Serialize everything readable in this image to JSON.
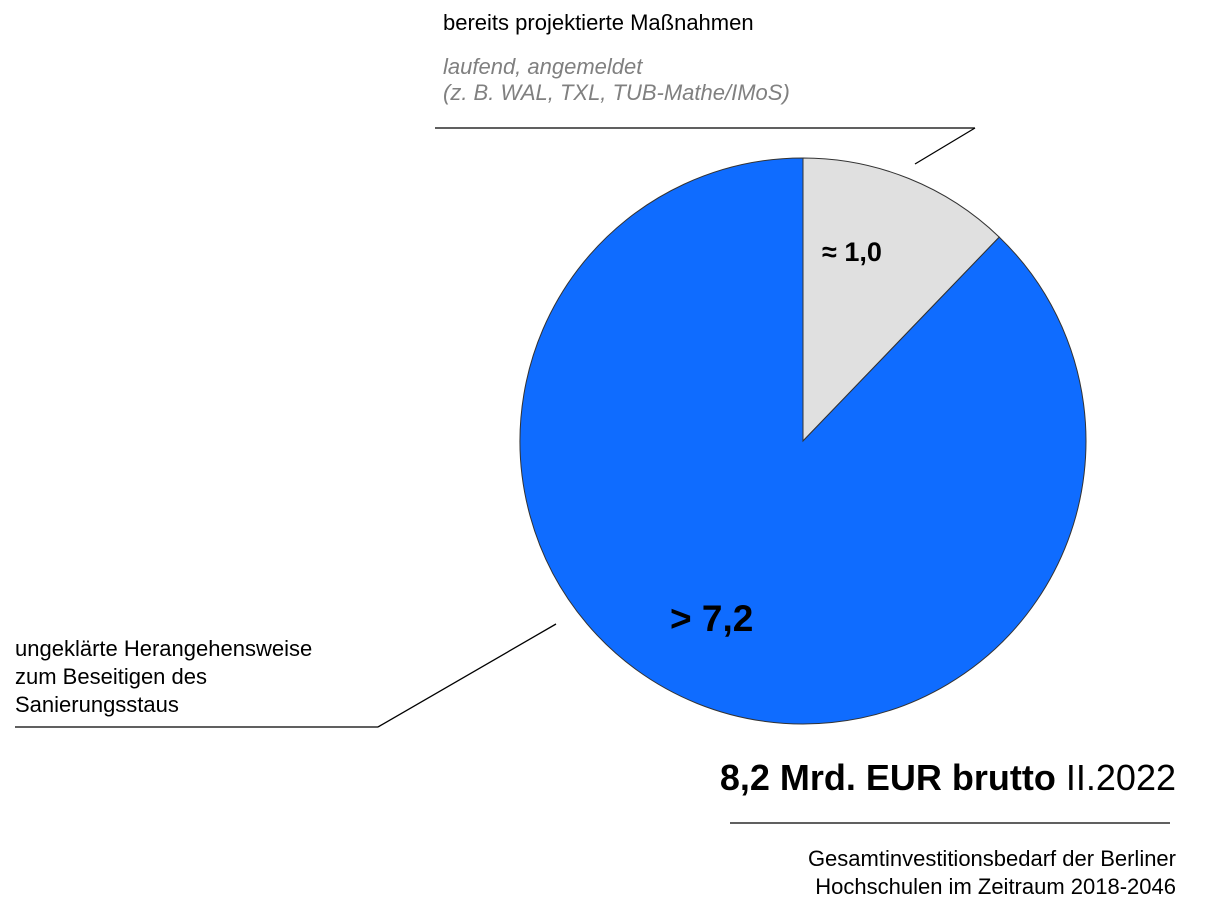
{
  "chart_data": {
    "type": "pie",
    "categories": [
      [
        "bereits projektierte Maßnahmen"
      ],
      [
        "ungeklärte Herangehensweise",
        "zum Beseitigen des",
        "Sanierungsstaus"
      ]
    ],
    "category_note": [
      "laufend, angemeldet",
      "(z. B. WAL, TXL, TUB-Mathe/IMoS)"
    ],
    "values": [
      1.0,
      7.2
    ],
    "value_labels": [
      "≈ 1,0",
      "> 7,2"
    ],
    "colors": [
      "#e0e0e0",
      "#0f6cff"
    ],
    "title": "8,2 Mrd. EUR brutto",
    "title_suffix": "II.2022",
    "subtitle": [
      "Gesamtinvestitionsbedarf der Berliner",
      "Hochschulen im Zeitraum 2018-2046"
    ]
  }
}
